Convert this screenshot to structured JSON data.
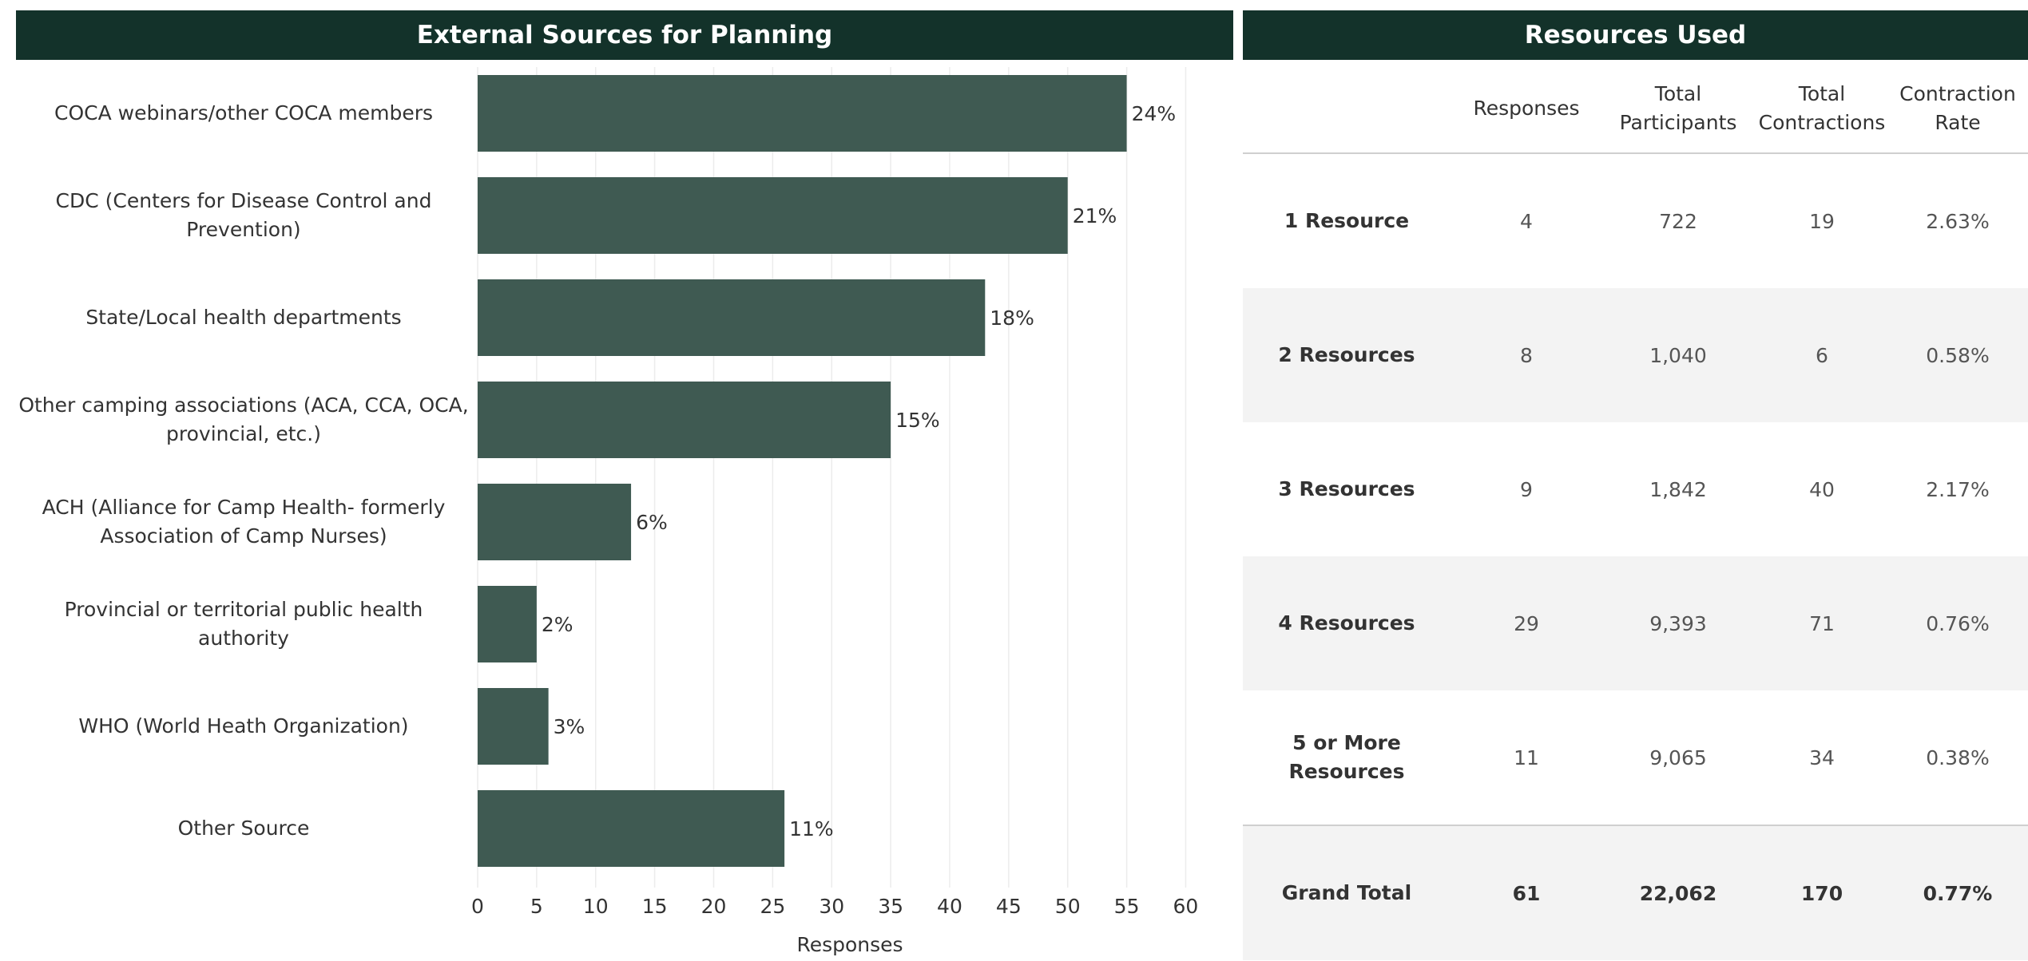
{
  "left_panel": {
    "title": "External Sources for Planning"
  },
  "right_panel": {
    "title": "Resources Used"
  },
  "colors": {
    "header_bg": "#13322a",
    "bar": "#3f5a52",
    "grid": "#ececec",
    "row_alt": "#f3f3f3"
  },
  "chart_data": {
    "type": "bar",
    "orientation": "horizontal",
    "title": "External Sources for Planning",
    "categories": [
      "COCA webinars/other COCA members",
      "CDC (Centers for Disease Control and Prevention)",
      "State/Local health departments",
      "Other camping associations (ACA, CCA, OCA, provincial, etc.)",
      "ACH (Alliance for Camp Health- formerly Association of Camp Nurses)",
      "Provincial or territorial public health authority",
      "WHO (World Heath Organization)",
      "Other Source"
    ],
    "values": [
      55,
      50,
      43,
      35,
      13,
      5,
      6,
      26
    ],
    "data_labels": [
      "24%",
      "21%",
      "18%",
      "15%",
      "6%",
      "2%",
      "3%",
      "11%"
    ],
    "xlabel": "Responses",
    "xlim": [
      0,
      62
    ],
    "xticks": [
      0,
      5,
      10,
      15,
      20,
      25,
      30,
      35,
      40,
      45,
      50,
      55,
      60
    ],
    "grid": "vertical",
    "legend": "none"
  },
  "table": {
    "columns": [
      "",
      "Responses",
      "Total Participants",
      "Total Contractions",
      "Contraction Rate"
    ],
    "rows": [
      {
        "label": "1 Resource",
        "responses": "4",
        "participants": "722",
        "contractions": "19",
        "rate": "2.63%"
      },
      {
        "label": "2 Resources",
        "responses": "8",
        "participants": "1,040",
        "contractions": "6",
        "rate": "0.58%"
      },
      {
        "label": "3 Resources",
        "responses": "9",
        "participants": "1,842",
        "contractions": "40",
        "rate": "2.17%"
      },
      {
        "label": "4 Resources",
        "responses": "29",
        "participants": "9,393",
        "contractions": "71",
        "rate": "0.76%"
      },
      {
        "label": "5 or More Resources",
        "responses": "11",
        "participants": "9,065",
        "contractions": "34",
        "rate": "0.38%"
      }
    ],
    "grand_total": {
      "label": "Grand Total",
      "responses": "61",
      "participants": "22,062",
      "contractions": "170",
      "rate": "0.77%"
    }
  }
}
